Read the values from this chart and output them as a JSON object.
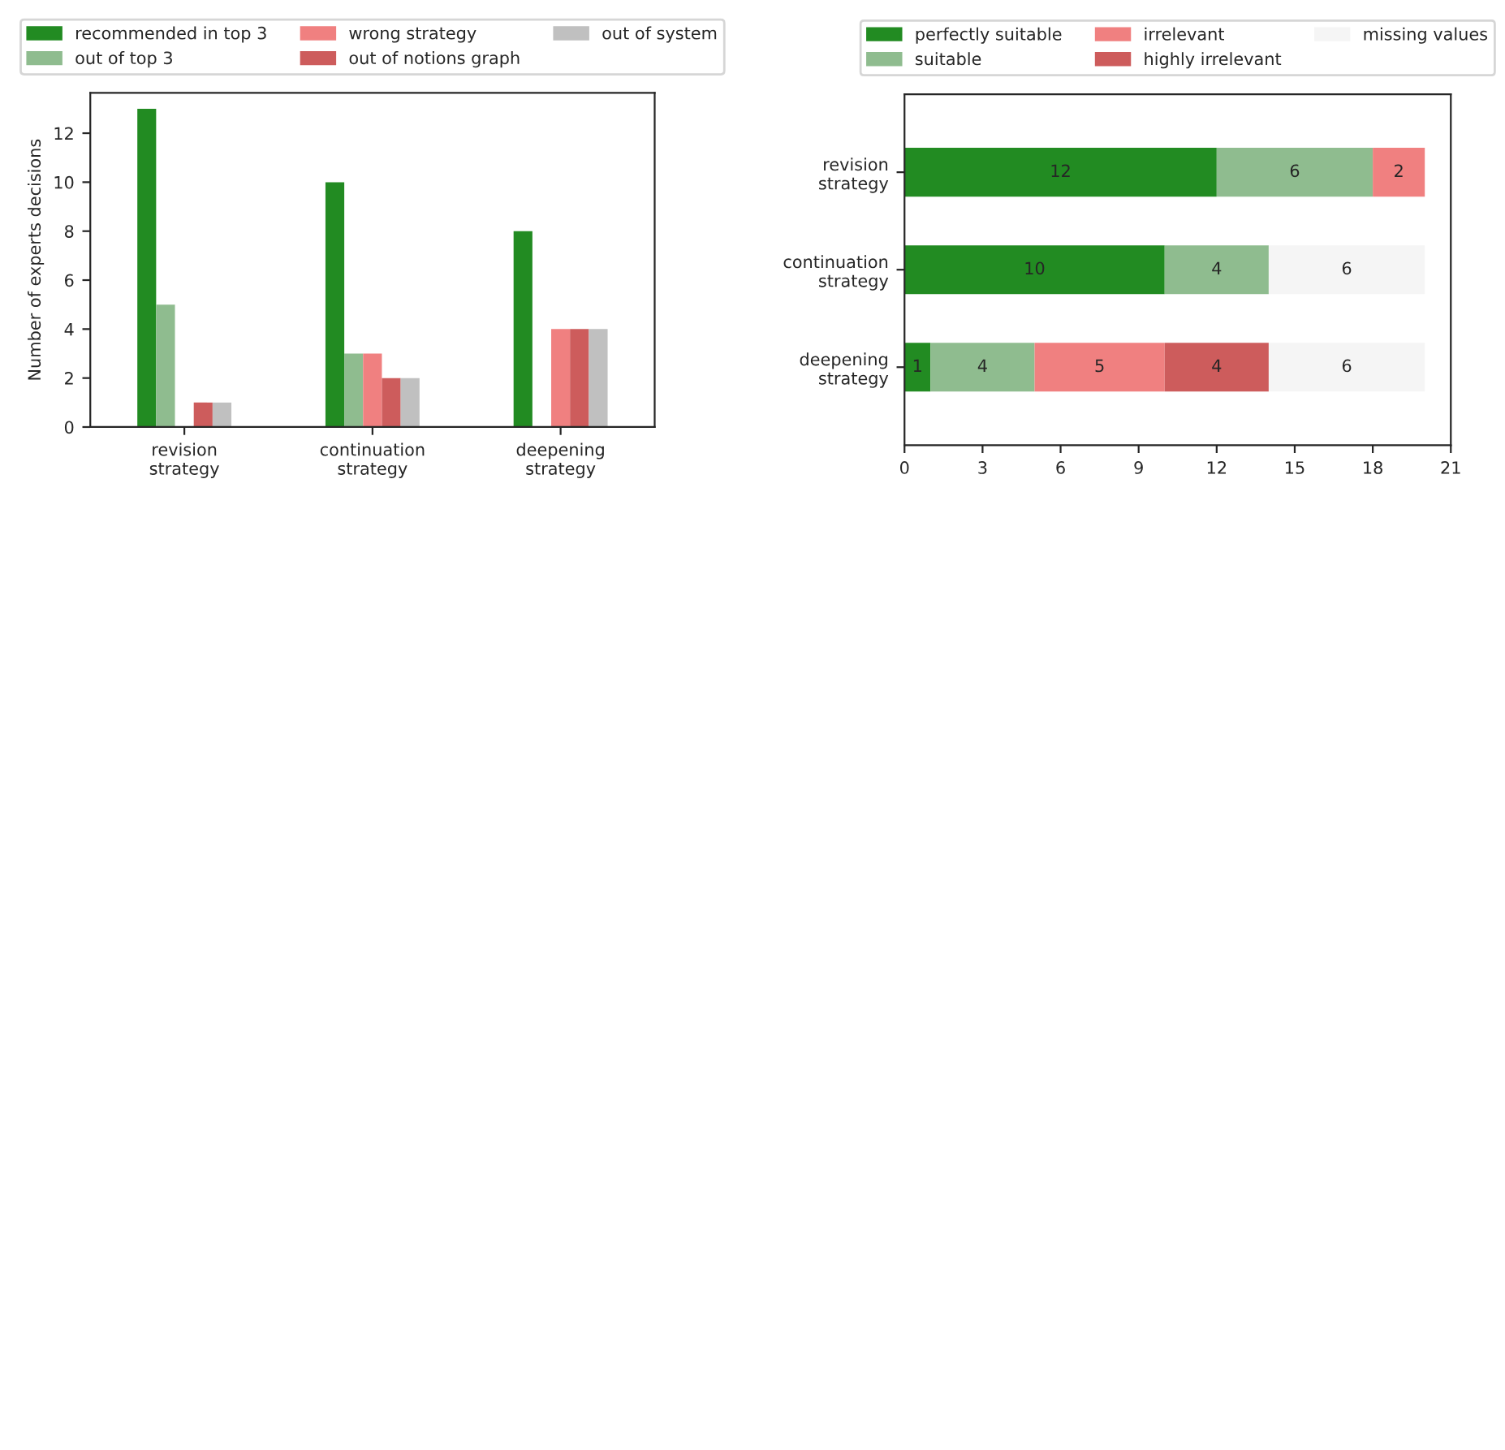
{
  "chart_data": [
    {
      "type": "bar",
      "ylabel": "Number of experts decisions",
      "categories": [
        "revision\nstrategy",
        "continuation\nstrategy",
        "deepening\nstrategy"
      ],
      "series": [
        {
          "name": "recommended in top 3",
          "color": "#228b22",
          "values": [
            13,
            10,
            8
          ]
        },
        {
          "name": "out of top 3",
          "color": "#8fbc8f",
          "values": [
            5,
            3,
            0
          ]
        },
        {
          "name": "wrong strategy",
          "color": "#f08080",
          "values": [
            0,
            3,
            4
          ]
        },
        {
          "name": "out of notions graph",
          "color": "#cd5c5c",
          "values": [
            1,
            2,
            4
          ]
        },
        {
          "name": "out of system",
          "color": "#c0c0c0",
          "values": [
            1,
            2,
            4
          ]
        }
      ],
      "ylim": [
        0,
        13.65
      ],
      "yticks": [
        0,
        2,
        4,
        6,
        8,
        10,
        12
      ],
      "legend": "top",
      "grid": false
    },
    {
      "type": "bar",
      "orientation": "horizontal",
      "stacked": true,
      "data_labels": true,
      "categories": [
        "revision\nstrategy",
        "continuation\nstrategy",
        "deepening\nstrategy"
      ],
      "series": [
        {
          "name": "perfectly suitable",
          "color": "#228b22",
          "values": [
            12,
            10,
            1
          ]
        },
        {
          "name": "suitable",
          "color": "#8fbc8f",
          "values": [
            6,
            4,
            4
          ]
        },
        {
          "name": "irrelevant",
          "color": "#f08080",
          "values": [
            2,
            null,
            5
          ]
        },
        {
          "name": "highly irrelevant",
          "color": "#cd5c5c",
          "values": [
            null,
            null,
            4
          ]
        },
        {
          "name": "missing values",
          "color": "#f5f5f5",
          "values": [
            null,
            6,
            6
          ]
        }
      ],
      "xlim": [
        0,
        21
      ],
      "xticks": [
        0,
        3,
        6,
        9,
        12,
        15,
        18,
        21
      ],
      "legend": "top",
      "grid": false
    }
  ]
}
